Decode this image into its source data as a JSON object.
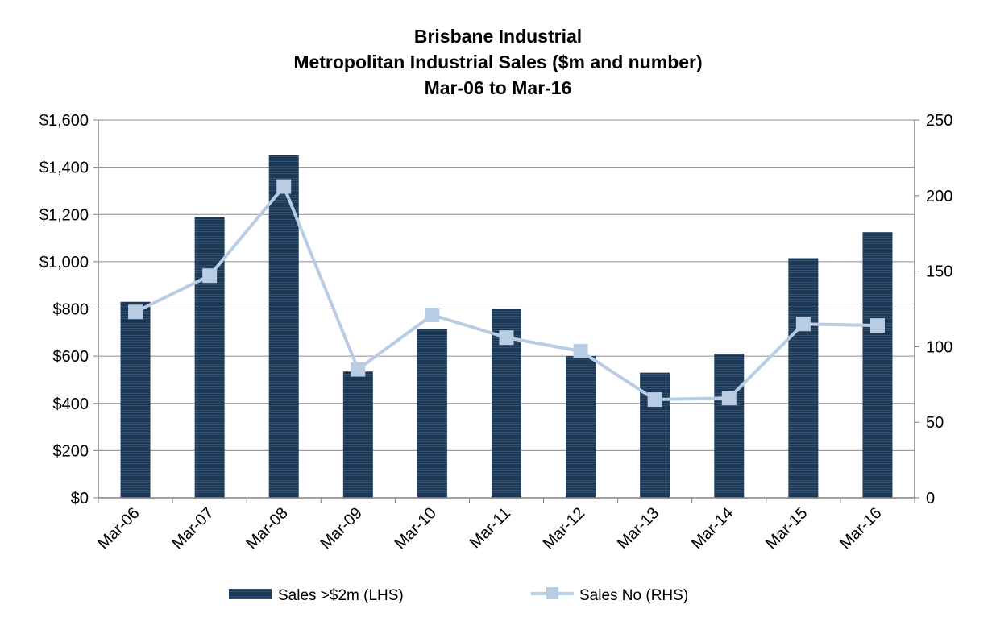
{
  "chart_data": {
    "type": "bar",
    "title": [
      "Brisbane Industrial",
      "Metropolitan Industrial Sales ($m and number)",
      "Mar-06 to Mar-16"
    ],
    "categories": [
      "Mar-06",
      "Mar-07",
      "Mar-08",
      "Mar-09",
      "Mar-10",
      "Mar-11",
      "Mar-12",
      "Mar-13",
      "Mar-14",
      "Mar-15",
      "Mar-16"
    ],
    "y_left": {
      "ylim": [
        0,
        1600
      ],
      "ticks": [
        0,
        200,
        400,
        600,
        800,
        1000,
        1200,
        1400,
        1600
      ],
      "tick_labels": [
        "$0",
        "$200",
        "$400",
        "$600",
        "$800",
        "$1,000",
        "$1,200",
        "$1,400",
        "$1,600"
      ]
    },
    "y_right": {
      "ylim": [
        0,
        250
      ],
      "ticks": [
        0,
        50,
        100,
        150,
        200,
        250
      ],
      "tick_labels": [
        "0",
        "50",
        "100",
        "150",
        "200",
        "250"
      ]
    },
    "series": [
      {
        "name": "Sales >$2m (LHS)",
        "kind": "bar",
        "axis": "left",
        "color": "#1f3a5a",
        "values": [
          830,
          1190,
          1450,
          535,
          715,
          800,
          600,
          530,
          610,
          1015,
          1125
        ]
      },
      {
        "name": "Sales No (RHS)",
        "kind": "line",
        "axis": "right",
        "color": "#b8cce4",
        "values": [
          123,
          147,
          206,
          85,
          121,
          106,
          97,
          65,
          66,
          115,
          114
        ]
      }
    ],
    "grid": true,
    "legend_position": "bottom"
  }
}
